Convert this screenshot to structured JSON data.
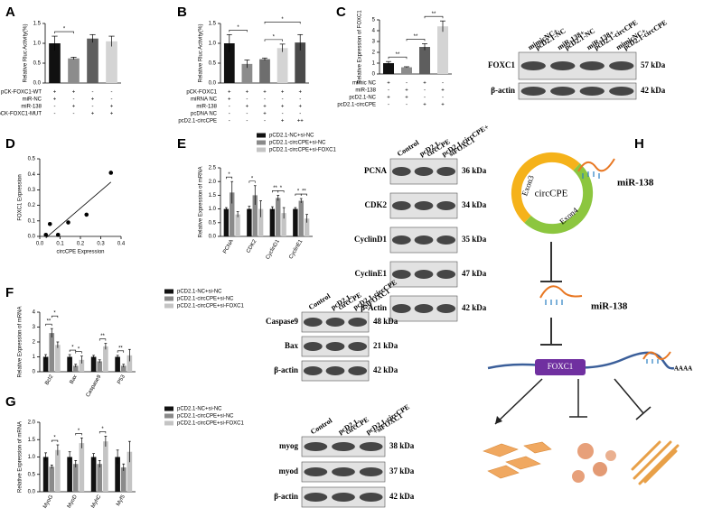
{
  "chart_data": [
    {
      "type": "bar",
      "panel": "A",
      "ylabel": "Relative Rluc Activity(%)",
      "ylim": [
        0,
        1.5
      ],
      "yticks": [
        {
          "value": 0,
          "label": "0.0"
        },
        0.5,
        {
          "value": 1,
          "label": "1.0"
        },
        1.5
      ],
      "values": [
        1,
        0.62,
        1.12,
        1.05
      ],
      "errors": [
        0.18,
        0.03,
        0.1,
        0.13
      ],
      "colors": [
        "#111111",
        "#8c8c8c",
        "#5e5e5e",
        "#d4d4d4"
      ],
      "conditions": [
        {
          "label": "pCK-FOXC1-WT",
          "marks": [
            "+",
            "+",
            "-",
            "-"
          ]
        },
        {
          "label": "miR-NC",
          "marks": [
            "+",
            "-",
            "+",
            "-"
          ]
        },
        {
          "label": "miR-138",
          "marks": [
            "-",
            "+",
            "-",
            "+"
          ]
        },
        {
          "label": "pCK-FOXC1-MUT",
          "marks": [
            "-",
            "-",
            "+",
            "+"
          ]
        }
      ],
      "significance": [
        "*"
      ]
    },
    {
      "type": "bar",
      "panel": "B",
      "ylabel": "Relative Rluc Activity(%)",
      "ylim": [
        0,
        1.5
      ],
      "yticks": [
        {
          "value": 0,
          "label": "0.0"
        },
        0.5,
        {
          "value": 1,
          "label": "1.0"
        },
        1.5
      ],
      "values": [
        1,
        0.48,
        0.6,
        0.88,
        1.02
      ],
      "errors": [
        0.22,
        0.1,
        0.03,
        0.1,
        0.2
      ],
      "colors": [
        "#111111",
        "#8c8c8c",
        "#6e6e6e",
        "#d4d4d4",
        "#4a4a4a"
      ],
      "conditions": [
        {
          "label": "pCK-FOXC1",
          "marks": [
            "+",
            "+",
            "+",
            "+",
            "+"
          ]
        },
        {
          "label": "miRNA NC",
          "marks": [
            "+",
            "-",
            "-",
            "-",
            "-"
          ]
        },
        {
          "label": "miR-138",
          "marks": [
            "-",
            "+",
            "+",
            "+",
            "+"
          ]
        },
        {
          "label": "pcDNA NC",
          "marks": [
            "-",
            "-",
            "+",
            "-",
            "-"
          ]
        },
        {
          "label": "pcD2.1-circCPE",
          "marks": [
            "-",
            "-",
            "-",
            "+",
            "++"
          ]
        }
      ],
      "significance": [
        "*",
        "*",
        "*"
      ]
    },
    {
      "type": "bar",
      "panel": "C",
      "ylabel": "Relative Expression of FOXC1",
      "ylim": [
        0,
        5
      ],
      "yticks": [
        0,
        1,
        2,
        3,
        4,
        5
      ],
      "values": [
        1,
        0.62,
        2.5,
        4.4
      ],
      "errors": [
        0.15,
        0.05,
        0.3,
        0.5
      ],
      "colors": [
        "#111111",
        "#8c8c8c",
        "#5e5e5e",
        "#d4d4d4"
      ],
      "conditions": [
        {
          "label": "mimic NC",
          "marks": [
            "+",
            "-",
            "+",
            "-"
          ]
        },
        {
          "label": "miR-138",
          "marks": [
            "-",
            "+",
            "-",
            "+"
          ]
        },
        {
          "label": "pcD2.1-NC",
          "marks": [
            "+",
            "+",
            "-",
            "-"
          ]
        },
        {
          "label": "pcD2.1-circCPE",
          "marks": [
            "-",
            "-",
            "+",
            "+"
          ]
        }
      ],
      "significance": [
        "**",
        "**",
        "**"
      ]
    },
    {
      "type": "scatter",
      "panel": "D",
      "xlabel": "circCPE Expression",
      "ylabel": "FOXC1 Expression",
      "xlim": [
        0,
        0.4
      ],
      "xticks": [
        {
          "value": 0,
          "label": "0.0"
        },
        0.1,
        0.2,
        0.3,
        0.4
      ],
      "ylim": [
        0,
        0.5
      ],
      "yticks": [
        {
          "value": 0,
          "label": "0.0"
        },
        0.1,
        0.2,
        0.3,
        0.4,
        0.5
      ],
      "x": [
        0.03,
        0.05,
        0.09,
        0.14,
        0.23,
        0.35
      ],
      "values": [
        0.01,
        0.08,
        0.01,
        0.09,
        0.14,
        0.41
      ],
      "color": "#000000"
    },
    {
      "type": "bar",
      "panel": "E",
      "ylabel": "Relative Expression of mRNA",
      "ylim": [
        0,
        2.5
      ],
      "yticks": [
        {
          "value": 0,
          "label": "0.0"
        },
        0.5,
        {
          "value": 1,
          "label": "1.0"
        },
        1.5,
        {
          "value": 2,
          "label": "2.0"
        },
        2.5
      ],
      "categories": [
        "PCNA",
        "CDK2",
        "CyclinD1",
        "CyclinE1"
      ],
      "series": [
        {
          "name": "pCD2.1-NC+si-NC",
          "color": "#111111",
          "values": [
            1,
            1,
            1,
            1
          ],
          "errors": [
            0.05,
            0.1,
            0.08,
            0.05
          ]
        },
        {
          "name": "pCD2.1-circCPE+si-NC",
          "color": "#8a8a8a",
          "values": [
            1.6,
            1.5,
            1.4,
            1.3
          ],
          "errors": [
            0.4,
            0.35,
            0.1,
            0.08
          ]
        },
        {
          "name": "pCD2.1-circCPE+si-FOXC1",
          "color": "#c4c4c4",
          "values": [
            0.8,
            1,
            0.85,
            0.65
          ],
          "errors": [
            0.1,
            0.3,
            0.2,
            0.15
          ]
        }
      ],
      "significance": [
        "*",
        "*",
        "**",
        "*",
        "*",
        "**"
      ]
    },
    {
      "type": "bar",
      "panel": "F",
      "ylabel": "Relative Expression of mRNA",
      "ylim": [
        0,
        4
      ],
      "yticks": [
        0,
        1,
        2,
        3,
        4
      ],
      "categories": [
        "Bcl2",
        "Bax",
        "Caspase9",
        "P53"
      ],
      "series": [
        {
          "name": "pCD2.1-NC+si-NC",
          "color": "#111111",
          "values": [
            1,
            1,
            1,
            1
          ],
          "errors": [
            0.15,
            0.15,
            0.1,
            0.1
          ]
        },
        {
          "name": "pCD2.1-circCPE+si-NC",
          "color": "#8a8a8a",
          "values": [
            2.6,
            0.4,
            0.7,
            0.4
          ],
          "errors": [
            0.3,
            0.1,
            0.1,
            0.1
          ]
        },
        {
          "name": "pCD2.1-circCPE+si-FOXC1",
          "color": "#c4c4c4",
          "values": [
            1.8,
            0.8,
            1.7,
            1.1
          ],
          "errors": [
            0.2,
            0.25,
            0.2,
            0.4
          ]
        }
      ],
      "significance": [
        "**",
        "*",
        "*",
        "*",
        "**",
        "**"
      ]
    },
    {
      "type": "bar",
      "panel": "G",
      "ylabel": "Relative Expression of mRNA",
      "ylim": [
        0,
        2
      ],
      "yticks": [
        {
          "value": 0,
          "label": "0.0"
        },
        0.5,
        {
          "value": 1,
          "label": "1.0"
        },
        1.5,
        {
          "value": 2,
          "label": "2.0"
        }
      ],
      "categories": [
        "MyoG",
        "MyoD",
        "MyhC",
        "Myf5"
      ],
      "series": [
        {
          "name": "pCD2.1-NC+si-NC",
          "color": "#111111",
          "values": [
            1,
            1,
            1,
            1
          ],
          "errors": [
            0.12,
            0.15,
            0.1,
            0.2
          ]
        },
        {
          "name": "pCD2.1-circCPE+si-NC",
          "color": "#8a8a8a",
          "values": [
            0.72,
            0.8,
            0.8,
            0.7
          ],
          "errors": [
            0.05,
            0.1,
            0.1,
            0.1
          ]
        },
        {
          "name": "pCD2.1-circCPE+si-FOXC1",
          "color": "#c4c4c4",
          "values": [
            1.2,
            1.4,
            1.45,
            1.15
          ],
          "errors": [
            0.15,
            0.15,
            0.15,
            0.3
          ]
        }
      ],
      "significance": [
        "*",
        "*",
        "*"
      ]
    }
  ],
  "blots": [
    {
      "panel": "C",
      "columns": [
        [
          "mimicNC+",
          "pcD2.1-NC"
        ],
        [
          "miR-138+",
          "pcD2.1-NC"
        ],
        [
          "miR-138+",
          "pcD2.1-circCPE"
        ],
        [
          "mimicNC+",
          "pcD2.1-circCPE"
        ]
      ],
      "rows": [
        {
          "label": "FOXC1",
          "kda": "57 kDa"
        },
        {
          "label": "β-actin",
          "kda": "42 kDa"
        }
      ]
    },
    {
      "panel": "E",
      "columns": [
        [
          "Control"
        ],
        [
          "pcD2.1-",
          "circCPE"
        ],
        [
          "pcD2.1-circCPE+",
          "siFOXC1"
        ]
      ],
      "rows": [
        {
          "label": "PCNA",
          "kda": "36 kDa"
        },
        {
          "label": "CDK2",
          "kda": "34 kDa"
        },
        {
          "label": "CyclinD1",
          "kda": "35 kDa"
        },
        {
          "label": "CyclinE1",
          "kda": "47 kDa"
        },
        {
          "label": "β-Actin",
          "kda": "42 kDa"
        }
      ]
    },
    {
      "panel": "F",
      "columns": [
        [
          "Control"
        ],
        [
          "pcD2.1-",
          "circCPE"
        ],
        [
          "pcD2.1-circCPE",
          "+siFOXC1"
        ]
      ],
      "rows": [
        {
          "label": "Caspase9",
          "kda": "48 kDa"
        },
        {
          "label": "Bax",
          "kda": "21 kDa"
        },
        {
          "label": "β-actin",
          "kda": "42 kDa"
        }
      ]
    },
    {
      "panel": "G",
      "columns": [
        [
          "Control"
        ],
        [
          "pcD2.1-",
          "circCPE"
        ],
        [
          "pcD2.1-circCPE",
          "+siFOXC1"
        ]
      ],
      "rows": [
        {
          "label": "myog",
          "kda": "38 kDa"
        },
        {
          "label": "myod",
          "kda": "37 kDa"
        },
        {
          "label": "β-actin",
          "kda": "42 kDa"
        }
      ]
    }
  ],
  "diagram": {
    "panel": "H",
    "circ": "circCPE",
    "exons": [
      "Exon3",
      "Exon4"
    ],
    "mirna": [
      "miR-138",
      "miR-138"
    ],
    "gene": "FOXC1",
    "tail": "AAAA"
  }
}
